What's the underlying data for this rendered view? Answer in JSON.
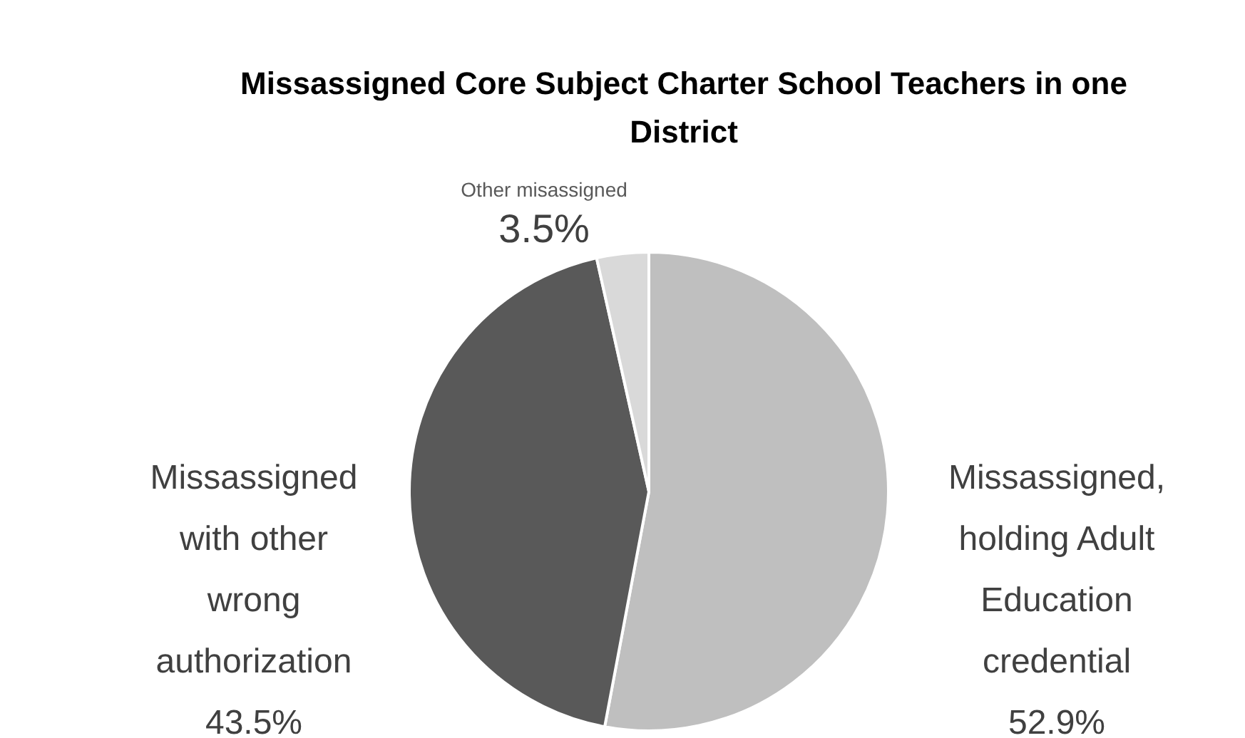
{
  "chart_data": {
    "type": "pie",
    "title": "Missassigned Core Subject Charter School Teachers in one District",
    "categories": [
      "Missassigned, holding Adult Education credential",
      "Missassigned with other wrong authorization",
      "Other misassigned"
    ],
    "values": [
      52.9,
      43.5,
      3.5
    ],
    "value_labels": [
      "52.9%",
      "43.5%",
      "3.5%"
    ],
    "colors": [
      "#bfbfbf",
      "#595959",
      "#d9d9d9"
    ]
  }
}
